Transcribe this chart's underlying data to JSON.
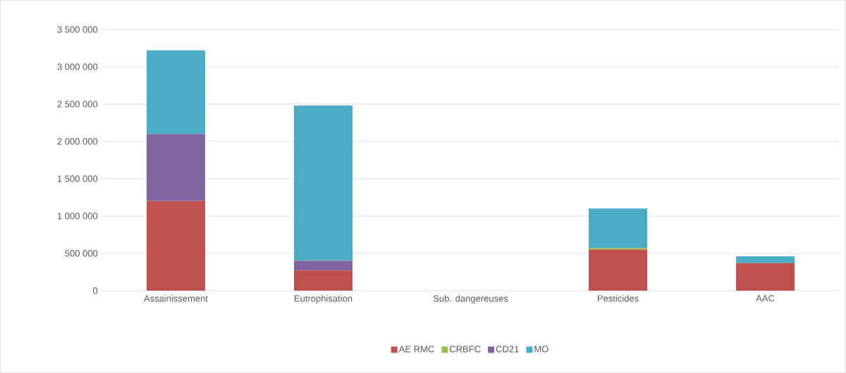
{
  "chart_data": {
    "type": "bar",
    "stacked": true,
    "categories": [
      "Assainissement",
      "Eutrophisation",
      "Sub. dangereuses",
      "Pesticides",
      "AAC"
    ],
    "series": [
      {
        "name": "AE RMC",
        "color": "#c0504d",
        "values": [
          1200000,
          270000,
          0,
          550000,
          370000
        ]
      },
      {
        "name": "CRBFC",
        "color": "#9bbb59",
        "values": [
          0,
          0,
          0,
          25000,
          0
        ]
      },
      {
        "name": "CD21",
        "color": "#8064a2",
        "values": [
          900000,
          130000,
          0,
          0,
          0
        ]
      },
      {
        "name": "MO",
        "color": "#4bacc6",
        "values": [
          1120000,
          2080000,
          0,
          525000,
          90000
        ]
      }
    ],
    "ylim": [
      0,
      3500000
    ],
    "yticks": [
      {
        "value": 0,
        "label": "0"
      },
      {
        "value": 500000,
        "label": "500 000"
      },
      {
        "value": 1000000,
        "label": "1 000 000"
      },
      {
        "value": 1500000,
        "label": "1 500 000"
      },
      {
        "value": 2000000,
        "label": "2 000 000"
      },
      {
        "value": 2500000,
        "label": "2 500 000"
      },
      {
        "value": 3000000,
        "label": "3 000 000"
      },
      {
        "value": 3500000,
        "label": "3 500 000"
      }
    ],
    "grid": "y",
    "legend": "bottom"
  }
}
